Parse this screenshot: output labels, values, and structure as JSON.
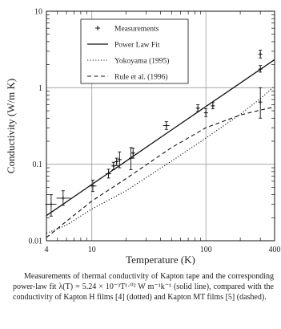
{
  "chart_data": {
    "type": "scatter",
    "title": "",
    "xlabel": "Temperature (K)",
    "ylabel": "Conductivity (W/m K)",
    "xscale": "log",
    "yscale": "log",
    "xlim": [
      4,
      400
    ],
    "ylim": [
      0.01,
      10
    ],
    "xticks": [
      4,
      10,
      100,
      400
    ],
    "xtick_labels": [
      "4",
      "10",
      "100",
      "400"
    ],
    "yticks": [
      0.01,
      0.1,
      1,
      10
    ],
    "ytick_labels": [
      "0.01",
      "0.1",
      "1",
      "10"
    ],
    "grid": true,
    "legend_position": "top-left",
    "series": [
      {
        "name": "Measurements",
        "kind": "points-with-error-bars",
        "marker": "+",
        "points": [
          {
            "x": 4.4,
            "y": 0.03,
            "ylo": 0.021,
            "yhi": 0.04,
            "xlo": 3.9,
            "xhi": 4.9
          },
          {
            "x": 5.6,
            "y": 0.036,
            "ylo": 0.029,
            "yhi": 0.045,
            "xlo": 4.9,
            "xhi": 6.5
          },
          {
            "x": 10.2,
            "y": 0.052,
            "ylo": 0.044,
            "yhi": 0.062,
            "xlo": 9.5,
            "xhi": 11.0
          },
          {
            "x": 14.0,
            "y": 0.075,
            "ylo": 0.066,
            "yhi": 0.086,
            "xlo": 13.2,
            "xhi": 14.8
          },
          {
            "x": 15.5,
            "y": 0.095,
            "ylo": 0.085,
            "yhi": 0.106,
            "xlo": 15.0,
            "xhi": 16.0
          },
          {
            "x": 16.5,
            "y": 0.108,
            "ylo": 0.096,
            "yhi": 0.12,
            "xlo": 16.0,
            "xhi": 17.0
          },
          {
            "x": 17.5,
            "y": 0.115,
            "ylo": 0.09,
            "yhi": 0.145,
            "xlo": 16.8,
            "xhi": 18.2
          },
          {
            "x": 22.0,
            "y": 0.12,
            "ylo": 0.085,
            "yhi": 0.165,
            "xlo": 21.5,
            "xhi": 22.5
          },
          {
            "x": 23.0,
            "y": 0.14,
            "ylo": 0.12,
            "yhi": 0.162,
            "xlo": 22.5,
            "xhi": 23.5
          },
          {
            "x": 45.0,
            "y": 0.32,
            "ylo": 0.285,
            "yhi": 0.36,
            "xlo": 42.0,
            "xhi": 48.0
          },
          {
            "x": 85.0,
            "y": 0.54,
            "ylo": 0.49,
            "yhi": 0.6,
            "xlo": 83.0,
            "xhi": 87.0
          },
          {
            "x": 100.0,
            "y": 0.47,
            "ylo": 0.42,
            "yhi": 0.53,
            "xlo": 98.0,
            "xhi": 102.0
          },
          {
            "x": 115.0,
            "y": 0.58,
            "ylo": 0.53,
            "yhi": 0.64,
            "xlo": 113.0,
            "xhi": 117.0
          },
          {
            "x": 300.0,
            "y": 2.75,
            "ylo": 2.45,
            "yhi": 3.1,
            "xlo": 296.0,
            "xhi": 304.0
          },
          {
            "x": 300.0,
            "y": 1.75,
            "ylo": 1.6,
            "yhi": 1.95,
            "xlo": 296.0,
            "xhi": 304.0
          },
          {
            "x": 300.0,
            "y": 0.65,
            "ylo": 0.4,
            "yhi": 1.0,
            "xlo": 296.0,
            "xhi": 304.0
          }
        ]
      },
      {
        "name": "Power Law Fit",
        "kind": "line",
        "style": "solid",
        "x": [
          4,
          10,
          20,
          50,
          100,
          200,
          400
        ],
        "y": [
          0.0213,
          0.0544,
          0.11,
          0.281,
          0.569,
          1.15,
          2.33
        ]
      },
      {
        "name": "Yokoyama (1995)",
        "kind": "line",
        "style": "dotted",
        "x": [
          4,
          6,
          10,
          20,
          50,
          100,
          200,
          300,
          400
        ],
        "y": [
          0.0125,
          0.016,
          0.026,
          0.045,
          0.11,
          0.22,
          0.45,
          0.72,
          1.05
        ]
      },
      {
        "name": "Rule et al. (1996)",
        "kind": "line",
        "style": "dashed",
        "x": [
          4,
          6,
          10,
          20,
          50,
          100,
          200,
          300,
          400
        ],
        "y": [
          0.011,
          0.018,
          0.033,
          0.065,
          0.165,
          0.3,
          0.44,
          0.51,
          0.56
        ]
      }
    ]
  },
  "caption": {
    "text": "Measurements of thermal conductivity of Kapton tape and the corresponding power-law fit λ(T) = 5.24 × 10⁻³T¹·⁰² W m⁻¹k⁻¹ (solid line), compared with the conductivity of Kapton H films [4] (dotted) and Kapton MT films [5] (dashed)."
  }
}
